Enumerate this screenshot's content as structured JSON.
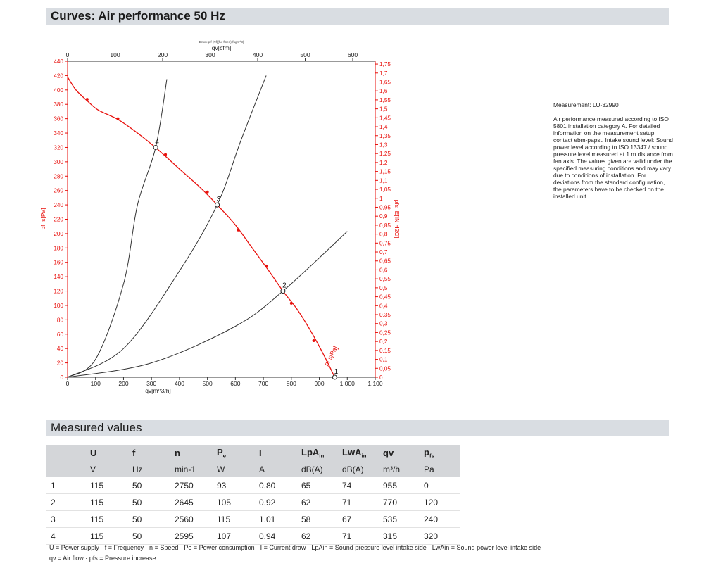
{
  "header": {
    "title": "Curves: Air performance 50 Hz"
  },
  "chart_data": {
    "type": "line",
    "small_title": "Druck p f (Rf)(fur ffnen)(fugm^3)",
    "x_bottom": {
      "label": "qv[m^3/h]",
      "range": [
        0,
        1100
      ],
      "ticks": [
        0,
        100,
        200,
        300,
        400,
        500,
        600,
        700,
        800,
        900,
        1000,
        1100
      ],
      "tick_labels": [
        "0",
        "100",
        "200",
        "300",
        "400",
        "500",
        "600",
        "700",
        "800",
        "900",
        "1.000",
        "1.100"
      ]
    },
    "x_top": {
      "label": "qv[cfm]",
      "range": [
        0,
        647.4
      ],
      "ticks": [
        0,
        100,
        200,
        300,
        400,
        500,
        600
      ],
      "tick_labels": [
        "0",
        "100",
        "200",
        "300",
        "400",
        "500",
        "600"
      ]
    },
    "y_left": {
      "label": "pf_s[Pa]",
      "range": [
        0,
        440
      ],
      "ticks": [
        0,
        20,
        40,
        60,
        80,
        100,
        120,
        140,
        160,
        180,
        200,
        220,
        240,
        260,
        280,
        300,
        320,
        340,
        360,
        380,
        400,
        420,
        440
      ],
      "tick_labels": [
        "0",
        "20",
        "40",
        "60",
        "80",
        "100",
        "120",
        "140",
        "160",
        "180",
        "200",
        "220",
        "240",
        "260",
        "280",
        "300",
        "320",
        "340",
        "360",
        "380",
        "400",
        "420",
        "440"
      ]
    },
    "y_right": {
      "label": "pfs_E[IN H2O]",
      "range": [
        0,
        1.766
      ],
      "ticks": [
        0,
        0.05,
        0.1,
        0.15,
        0.2,
        0.25,
        0.3,
        0.35,
        0.4,
        0.45,
        0.5,
        0.55,
        0.6,
        0.65,
        0.7,
        0.75,
        0.8,
        0.85,
        0.9,
        0.95,
        1,
        1.05,
        1.1,
        1.15,
        1.2,
        1.25,
        1.3,
        1.35,
        1.4,
        1.45,
        1.5,
        1.55,
        1.6,
        1.65,
        1.7,
        1.75
      ],
      "tick_labels": [
        "0",
        "0,05",
        "0,1",
        "0,15",
        "0,2",
        "0,25",
        "0,3",
        "0,35",
        "0,4",
        "0,45",
        "0,5",
        "0,55",
        "0,6",
        "0,65",
        "0,7",
        "0,75",
        "0,8",
        "0,85",
        "0,9",
        "0,95",
        "1",
        "1,05",
        "1,1",
        "1,15",
        "1,2",
        "1,25",
        "1,3",
        "1,35",
        "1,4",
        "1,45",
        "1,5",
        "1,55",
        "1,6",
        "1,65",
        "1,7",
        "1,75"
      ]
    },
    "grid": false,
    "series": [
      {
        "name": "pfs",
        "label": "pf s[Pa]",
        "color": "#e8100c",
        "x": [
          0,
          30,
          70,
          110,
          180,
          250,
          320,
          400,
          480,
          535,
          600,
          660,
          720,
          770,
          820,
          870,
          920,
          955
        ],
        "y": [
          418,
          400,
          385,
          372,
          359,
          340,
          318,
          290,
          262,
          240,
          212,
          180,
          148,
          120,
          95,
          64,
          28,
          0
        ],
        "markers_x": [
          70,
          180,
          350,
          500,
          610,
          710,
          800,
          880
        ],
        "markers_y": [
          387,
          360,
          310,
          258,
          205,
          155,
          103,
          51
        ]
      },
      {
        "name": "system-1",
        "color": "#333333",
        "x": [
          0,
          100,
          200,
          250,
          315,
          355
        ],
        "y": [
          0,
          25,
          130,
          240,
          320,
          415
        ]
      },
      {
        "name": "system-2",
        "color": "#333333",
        "x": [
          0,
          200,
          400,
          535,
          620,
          710
        ],
        "y": [
          0,
          40,
          148,
          240,
          330,
          420
        ]
      },
      {
        "name": "system-3",
        "color": "#333333",
        "x": [
          0,
          300,
          600,
          770,
          1000
        ],
        "y": [
          0,
          20,
          71,
          120,
          203
        ]
      }
    ],
    "operating_points": [
      {
        "label": "1",
        "x": 955,
        "y": 0
      },
      {
        "label": "2",
        "x": 770,
        "y": 120
      },
      {
        "label": "3",
        "x": 535,
        "y": 240
      },
      {
        "label": "4",
        "x": 315,
        "y": 320
      }
    ]
  },
  "measurement": {
    "id": "Measurement: LU-32990",
    "text": "Air performance measured according to ISO 5801 installation category A. For detailed information on the measurement setup, contact ebm-papst. Intake sound level: Sound power level according to ISO 13347 / sound pressure level measured at 1 m distance from fan axis. The values given are valid under the specified measuring conditions and may vary due to conditions of installation. For deviations from the standard configuration, the parameters have to be checked on the installed unit."
  },
  "measured_values": {
    "title": "Measured values",
    "headers": [
      {
        "main": "",
        "sub": ""
      },
      {
        "main": "U",
        "sub": ""
      },
      {
        "main": "f",
        "sub": ""
      },
      {
        "main": "n",
        "sub": ""
      },
      {
        "main": "P",
        "sub": "e"
      },
      {
        "main": "I",
        "sub": ""
      },
      {
        "main": "LpA",
        "sub": "in"
      },
      {
        "main": "LwA",
        "sub": "in"
      },
      {
        "main": "qv",
        "sub": ""
      },
      {
        "main": "p",
        "sub": "fs"
      }
    ],
    "units": [
      "",
      "V",
      "Hz",
      "min-1",
      "W",
      "A",
      "dB(A)",
      "dB(A)",
      "m³/h",
      "Pa"
    ],
    "rows": [
      [
        "1",
        "115",
        "50",
        "2750",
        "93",
        "0.80",
        "65",
        "74",
        "955",
        "0"
      ],
      [
        "2",
        "115",
        "50",
        "2645",
        "105",
        "0.92",
        "62",
        "71",
        "770",
        "120"
      ],
      [
        "3",
        "115",
        "50",
        "2560",
        "115",
        "1.01",
        "58",
        "67",
        "535",
        "240"
      ],
      [
        "4",
        "115",
        "50",
        "2595",
        "107",
        "0.94",
        "62",
        "71",
        "315",
        "320"
      ]
    ],
    "legend_line1": "U = Power supply · f = Frequency · n = Speed · Pe = Power consumption · I = Current draw · LpAin = Sound pressure level intake side · LwAin = Sound power level intake side",
    "legend_line2": "qv = Air flow · pfs = Pressure increase"
  },
  "colors": {
    "accent_red": "#e8100c",
    "bar_gray": "#d9dde2"
  }
}
